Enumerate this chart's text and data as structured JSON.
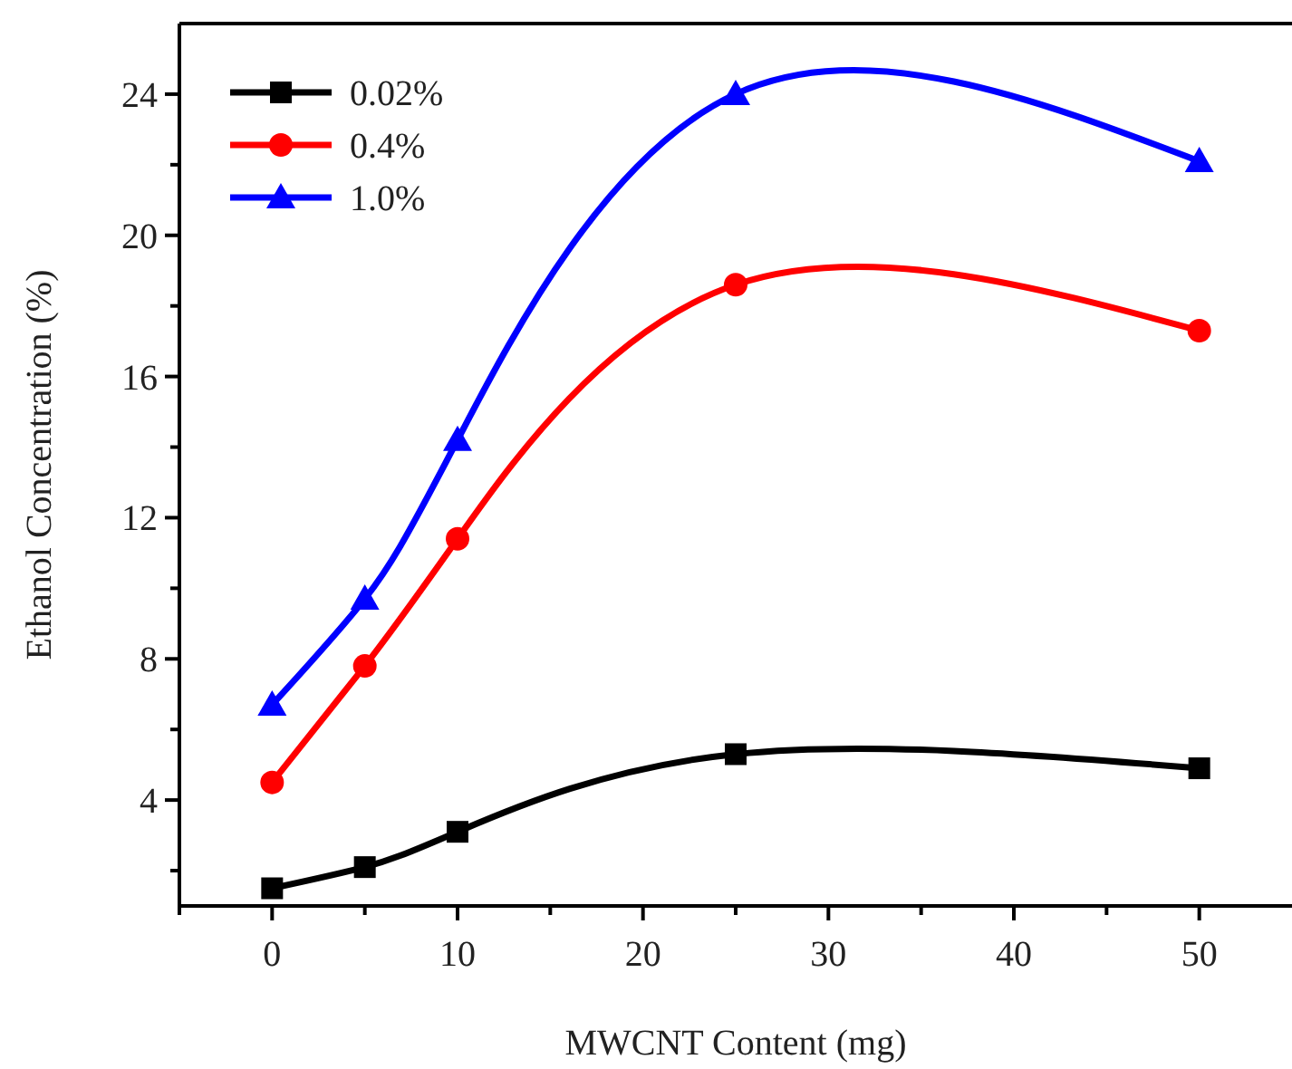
{
  "chart_data": {
    "type": "line",
    "xlabel": "MWCNT Content (mg)",
    "ylabel": "Ethanol Concentration (%)",
    "x": [
      0,
      5,
      10,
      25,
      50
    ],
    "series": [
      {
        "name": "0.02%",
        "color": "#000000",
        "marker": "square",
        "values": [
          1.5,
          2.1,
          3.1,
          5.3,
          4.9
        ]
      },
      {
        "name": "0.4%",
        "color": "#ff0000",
        "marker": "circle",
        "values": [
          4.5,
          7.8,
          11.4,
          18.6,
          17.3
        ]
      },
      {
        "name": "1.0%",
        "color": "#0000ff",
        "marker": "triangle",
        "values": [
          6.7,
          9.7,
          14.2,
          24.0,
          22.1
        ]
      }
    ],
    "xlim": [
      -5,
      55
    ],
    "xticks": [
      {
        "value": -5,
        "label": null
      },
      0,
      {
        "value": 5,
        "label": null
      },
      10,
      {
        "value": 15,
        "label": null
      },
      20,
      {
        "value": 25,
        "label": null
      },
      30,
      {
        "value": 35,
        "label": null
      },
      40,
      {
        "value": 45,
        "label": null
      },
      50
    ],
    "ylim": [
      1,
      26
    ],
    "yticks": [
      {
        "value": 2,
        "label": null
      },
      4,
      {
        "value": 6,
        "label": null
      },
      8,
      {
        "value": 10,
        "label": null
      },
      12,
      {
        "value": 14,
        "label": null
      },
      16,
      {
        "value": 18,
        "label": null
      },
      20,
      {
        "value": 22,
        "label": null
      },
      24
    ],
    "legend": "top left",
    "grid": false
  }
}
